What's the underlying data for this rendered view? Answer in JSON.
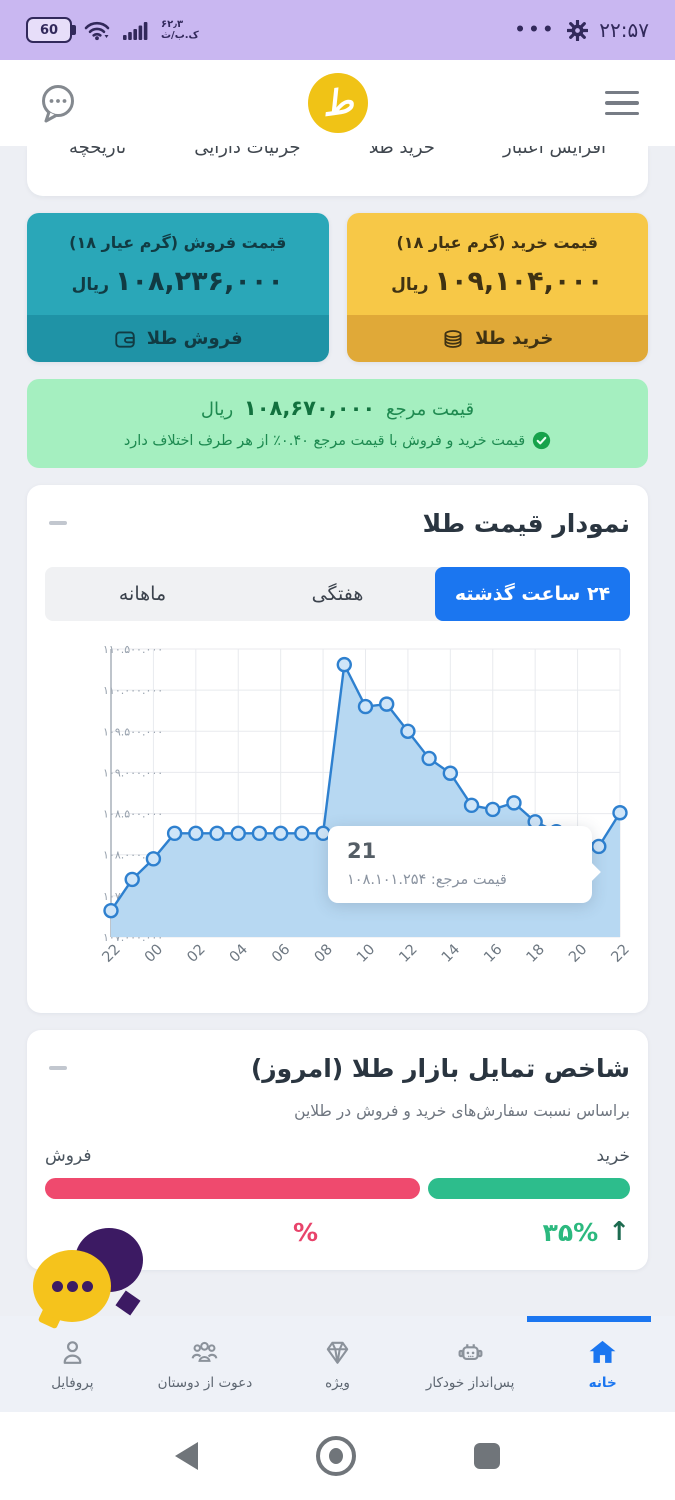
{
  "status_bar": {
    "battery": "60",
    "speed_value": "۶۲٫۳",
    "speed_unit": "ک.ب/ث",
    "dots": "•••",
    "time": "۲۲:۵۷"
  },
  "header": {
    "logo_letter": "ط"
  },
  "top_tabs": {
    "items": [
      {
        "label": "افزایش اعتبار"
      },
      {
        "label": "خرید طلا"
      },
      {
        "label": "جزئیات دارایی"
      },
      {
        "label": "تاریخچه"
      }
    ]
  },
  "buy_card": {
    "title": "قیمت خرید (گرم عیار ۱۸)",
    "price": "۱۰۹,۱۰۴,۰۰۰",
    "unit": "ریال",
    "button": "خرید طلا"
  },
  "sell_card": {
    "title": "قیمت فروش (گرم عیار ۱۸)",
    "price": "۱۰۸,۲۳۶,۰۰۰",
    "unit": "ریال",
    "button": "فروش طلا"
  },
  "reference_banner": {
    "label": "قیمت مرجع",
    "price": "۱۰۸,۶۷۰,۰۰۰",
    "unit": "ریال",
    "note": "قیمت خرید و فروش با قیمت مرجع ۰.۴۰٪ از هر طرف اختلاف دارد"
  },
  "chart_card": {
    "title": "نمودار قیمت طلا",
    "tabs": [
      {
        "label": "۲۴ ساعت گذشته",
        "active": true
      },
      {
        "label": "هفتگی",
        "active": false
      },
      {
        "label": "ماهانه",
        "active": false
      }
    ]
  },
  "chart_data": [
    {
      "type": "area",
      "title": "نمودار قیمت طلا",
      "x": [
        "22",
        "23",
        "00",
        "01",
        "02",
        "03",
        "04",
        "05",
        "06",
        "07",
        "08",
        "09",
        "10",
        "11",
        "12",
        "13",
        "14",
        "15",
        "16",
        "17",
        "18",
        "19",
        "20",
        "21",
        "22"
      ],
      "values_million": [
        107.32,
        107.7,
        107.95,
        108.26,
        108.26,
        108.26,
        108.26,
        108.26,
        108.26,
        108.26,
        108.26,
        110.31,
        109.8,
        109.83,
        109.5,
        109.17,
        108.99,
        108.6,
        108.55,
        108.63,
        108.4,
        108.28,
        108.22,
        108.1,
        108.51
      ],
      "x_tick_labels": [
        "22",
        "00",
        "02",
        "04",
        "06",
        "08",
        "10",
        "12",
        "14",
        "16",
        "18",
        "20",
        "22"
      ],
      "y_tick_labels": [
        "۱۱۰.۵۰۰.۰۰۰",
        "۱۱۰.۰۰۰.۰۰۰",
        "۱۰۹.۵۰۰.۰۰۰",
        "۱۰۹.۰۰۰.۰۰۰",
        "۱۰۸.۵۰۰.۰۰۰",
        "۱۰۸.۰۰۰.۰۰۰",
        "۱۰۷.۵۰۰.۰۰۰",
        "۱۰۷.۰۰۰.۰۰۰"
      ],
      "ylim_million": [
        107.0,
        110.5
      ],
      "grid": true,
      "line_color": "#2e80cf",
      "fill_color": "#b7d8f2",
      "tooltip": {
        "title": "21",
        "label": "قیمت مرجع: ۱۰۸.۱۰۱.۲۵۴"
      }
    },
    {
      "type": "bar",
      "title": "شاخص تمایل بازار طلا (امروز)",
      "categories": [
        "خرید",
        "فروش"
      ],
      "values": [
        35,
        65
      ],
      "colors": [
        "#2dbd8c",
        "#ef4a6e"
      ]
    }
  ],
  "sentiment_card": {
    "title": "شاخص تمایل بازار طلا (امروز)",
    "subtitle": "براساس نسبت سفارش‌های خرید و فروش در طلاین",
    "buy_label": "خرید",
    "sell_label": "فروش",
    "buy_percent": "۳۵%",
    "buy_arrow": "↑",
    "sell_percent_visible": "%"
  },
  "bottom_nav": {
    "items": [
      {
        "label": "خانه",
        "active": true
      },
      {
        "label": "پس‌انداز خودکار",
        "active": false
      },
      {
        "label": "ویژه",
        "active": false
      },
      {
        "label": "دعوت از دوستان",
        "active": false
      },
      {
        "label": "پروفایل",
        "active": false
      }
    ]
  },
  "colors": {
    "accent_blue": "#1b76f0",
    "teal_card": "#2aa7b8",
    "yellow_card": "#f7c847",
    "banner_green": "#a5efc0",
    "buy_bar_green": "#2dbd8c",
    "sell_bar_pink": "#ef4a6e",
    "status_bar_lavender": "#c9b7f1"
  }
}
